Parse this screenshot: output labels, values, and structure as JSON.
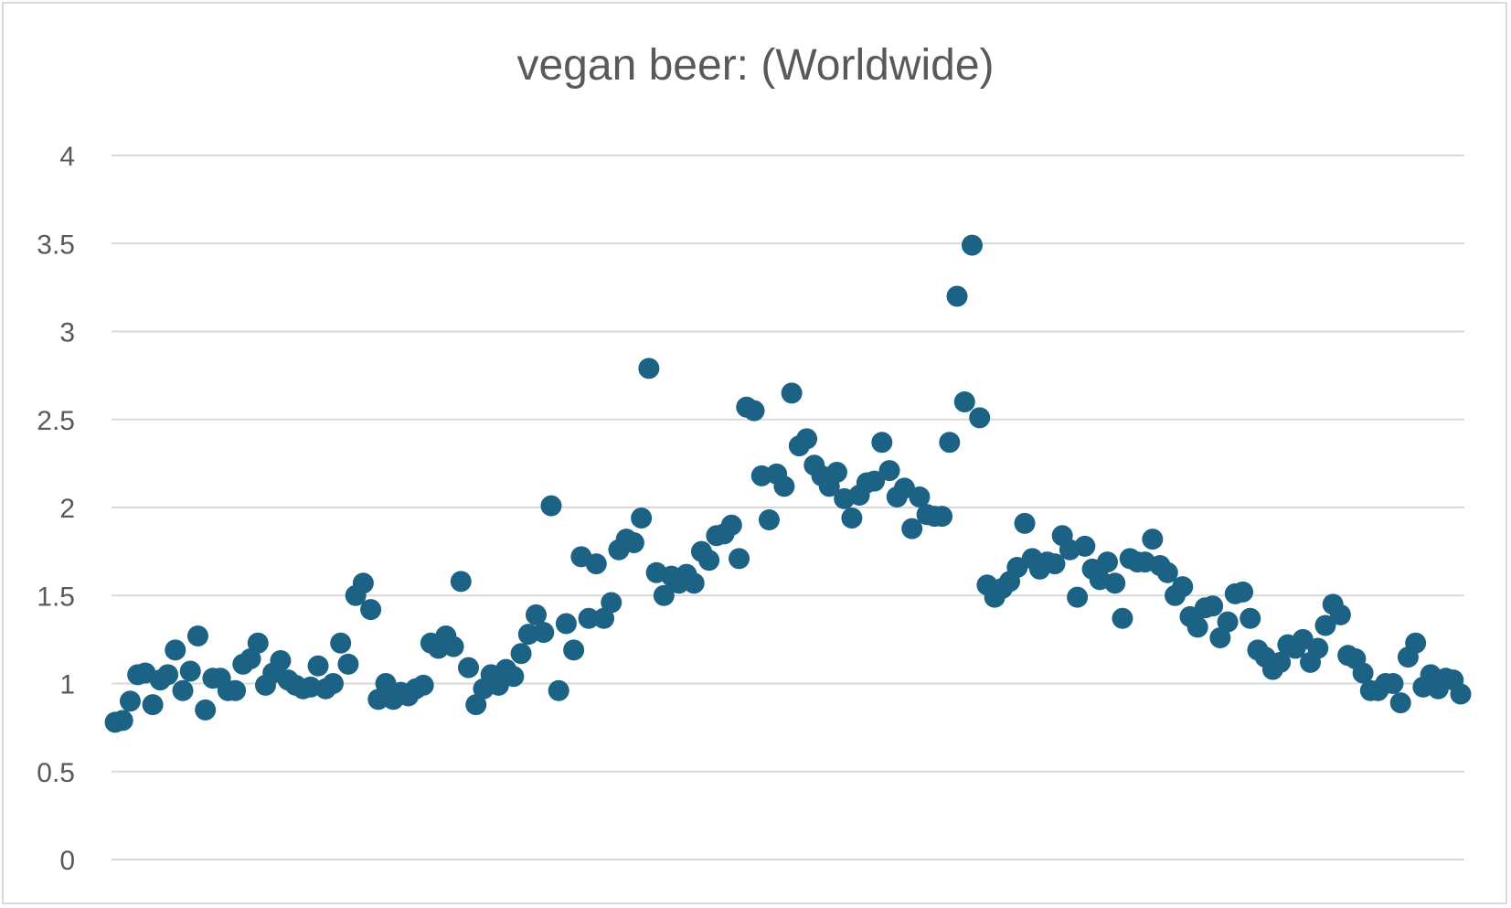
{
  "chart_data": {
    "type": "scatter",
    "title": "vegan beer: (Worldwide)",
    "xlabel": "",
    "ylabel": "",
    "ylim": [
      0,
      4
    ],
    "yticks": [
      "0",
      "0.5",
      "1",
      "1.5",
      "2",
      "2.5",
      "3",
      "3.5",
      "4"
    ],
    "grid": true,
    "legend": "none",
    "marker_color": "#1b6285",
    "gridline_color": "#d9d9d9",
    "series": [
      {
        "values": [
          0.78,
          0.79,
          0.9,
          1.05,
          1.06,
          0.88,
          1.02,
          1.05,
          1.19,
          0.96,
          1.07,
          1.27,
          0.85,
          1.03,
          1.03,
          0.96,
          0.96,
          1.11,
          1.14,
          1.23,
          0.99,
          1.06,
          1.13,
          1.02,
          0.99,
          0.97,
          0.98,
          1.1,
          0.97,
          1.0,
          1.23,
          1.11,
          1.5,
          1.57,
          1.42,
          0.91,
          1.0,
          0.91,
          0.95,
          0.93,
          0.97,
          0.99,
          1.23,
          1.2,
          1.27,
          1.21,
          1.58,
          1.09,
          0.88,
          0.97,
          1.05,
          0.99,
          1.08,
          1.04,
          1.17,
          1.28,
          1.39,
          1.29,
          2.01,
          0.96,
          1.34,
          1.19,
          1.72,
          1.37,
          1.68,
          1.37,
          1.46,
          1.76,
          1.82,
          1.8,
          1.94,
          2.79,
          1.63,
          1.5,
          1.61,
          1.57,
          1.62,
          1.57,
          1.75,
          1.7,
          1.84,
          1.85,
          1.9,
          1.71,
          2.57,
          2.55,
          2.18,
          1.93,
          2.19,
          2.12,
          2.65,
          2.35,
          2.39,
          2.24,
          2.18,
          2.12,
          2.2,
          2.05,
          1.94,
          2.07,
          2.14,
          2.15,
          2.37,
          2.21,
          2.06,
          2.11,
          1.88,
          2.06,
          1.96,
          1.95,
          1.95,
          2.37,
          3.2,
          2.6,
          3.49,
          2.51,
          1.56,
          1.49,
          1.54,
          1.58,
          1.66,
          1.91,
          1.71,
          1.65,
          1.69,
          1.68,
          1.84,
          1.76,
          1.49,
          1.78,
          1.65,
          1.59,
          1.69,
          1.57,
          1.37,
          1.71,
          1.69,
          1.69,
          1.82,
          1.67,
          1.63,
          1.5,
          1.55,
          1.38,
          1.32,
          1.43,
          1.44,
          1.26,
          1.35,
          1.51,
          1.52,
          1.37,
          1.19,
          1.15,
          1.08,
          1.12,
          1.22,
          1.2,
          1.25,
          1.12,
          1.2,
          1.33,
          1.45,
          1.39,
          1.16,
          1.14,
          1.06,
          0.96,
          0.96,
          1.0,
          1.0,
          0.89,
          1.15,
          1.23,
          0.98,
          1.05,
          0.97,
          1.03,
          1.02,
          0.94
        ]
      }
    ]
  }
}
